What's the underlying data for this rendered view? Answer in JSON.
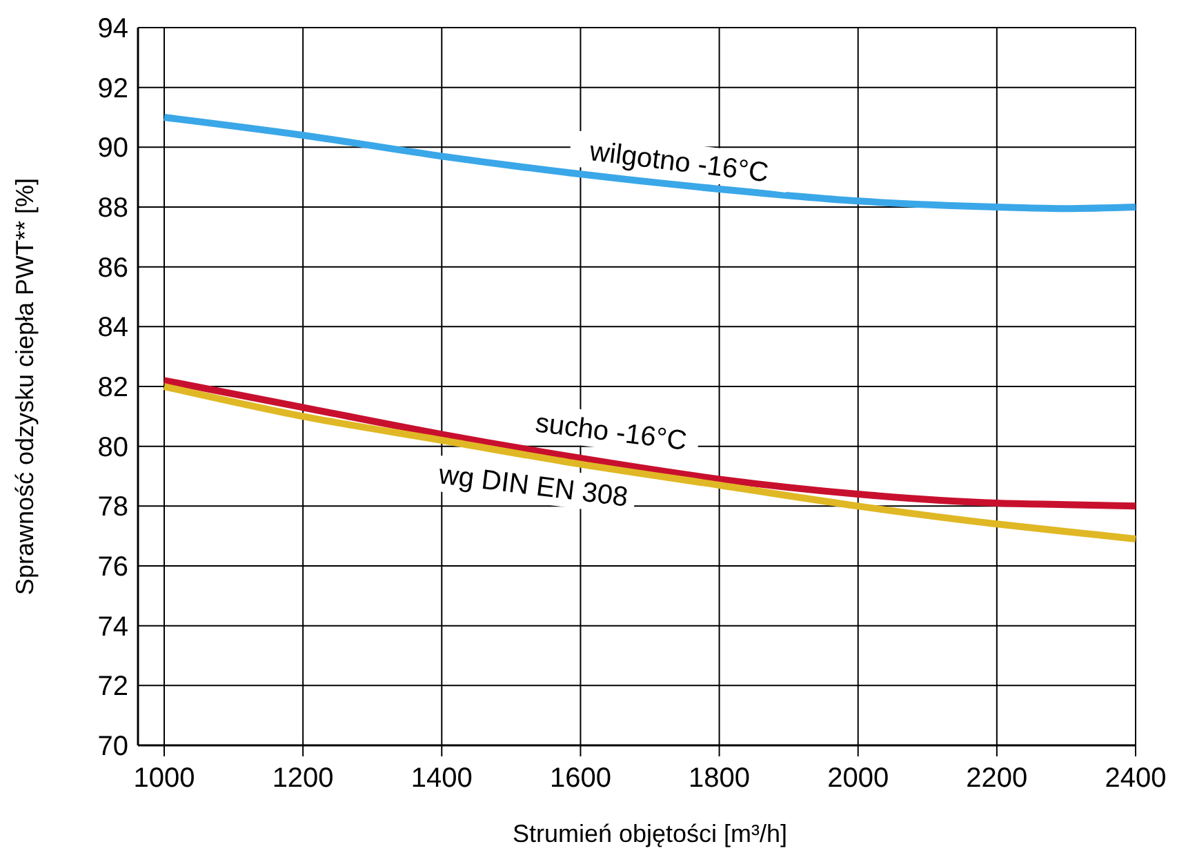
{
  "chart_data": {
    "type": "line",
    "xlabel": "Strumień objętości [m³/h]",
    "ylabel": "Sprawność odzysku ciepła PWT** [%]",
    "x": [
      1000,
      1200,
      1400,
      1600,
      1800,
      2000,
      2200,
      2300,
      2400
    ],
    "series": [
      {
        "name": "wilgotno -16°C",
        "color": "#3aa7e8",
        "values": [
          91.0,
          90.4,
          89.7,
          89.1,
          88.6,
          88.2,
          88.0,
          87.95,
          88.0
        ]
      },
      {
        "name": "sucho -16°C",
        "color": "#c8102e",
        "values": [
          82.2,
          81.3,
          80.4,
          79.6,
          78.9,
          78.4,
          78.1,
          78.05,
          78.0
        ]
      },
      {
        "name": "wg DIN EN 308",
        "color": "#e0b825",
        "values": [
          82.0,
          81.0,
          80.2,
          79.4,
          78.7,
          78.0,
          77.4,
          77.15,
          76.9
        ]
      }
    ],
    "xlim": [
      1000,
      2400
    ],
    "xticks": [
      1000,
      1200,
      1400,
      1600,
      1800,
      2000,
      2200,
      2400
    ],
    "ylim": [
      70,
      94
    ],
    "yticks": [
      70,
      72,
      74,
      76,
      78,
      80,
      82,
      84,
      86,
      88,
      90,
      92,
      94
    ],
    "grid": true,
    "marker": "none",
    "line_style": "solid"
  }
}
